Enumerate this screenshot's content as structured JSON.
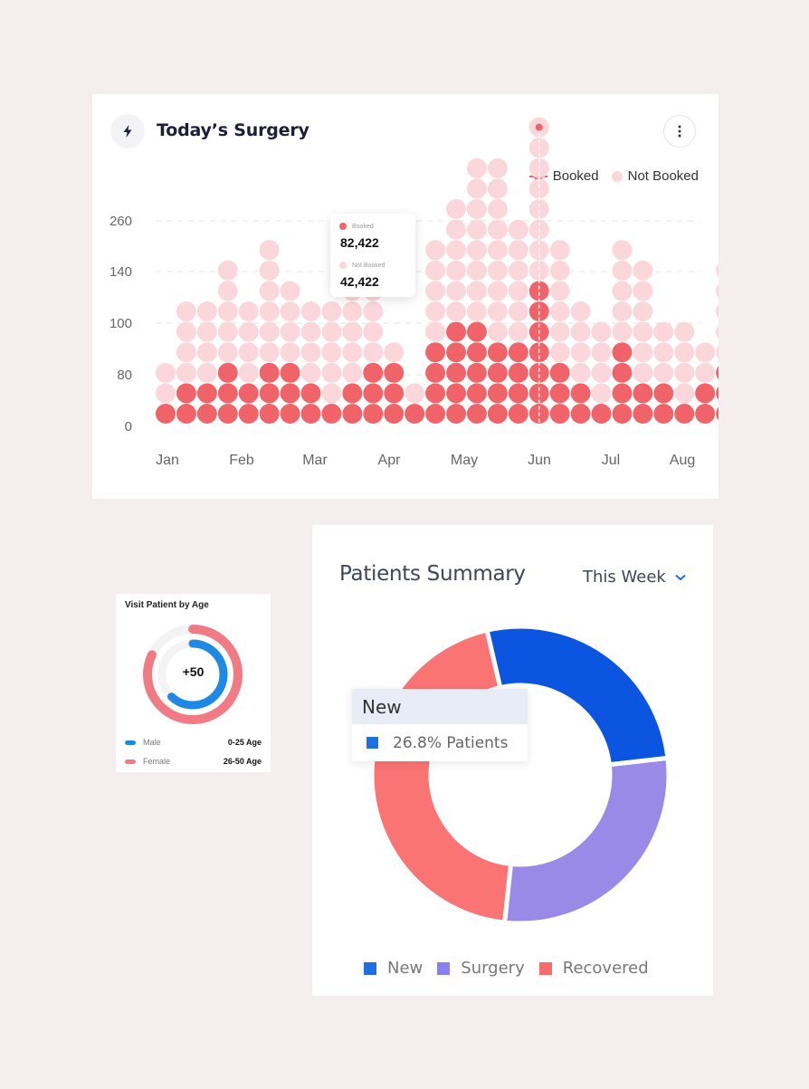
{
  "surgery": {
    "title": "Today’s Surgery",
    "tooltip": {
      "booked_label": "Booked",
      "booked_value": "82,422",
      "not_booked_label": "Not Booked",
      "not_booked_value": "42,422"
    }
  },
  "age_card": {
    "title": "Visit Patient by Age",
    "center_label": "+50",
    "male_fraction": 0.62,
    "female_fraction": 0.82,
    "legend": [
      {
        "label": "Male",
        "value": "0-25 Age",
        "color": "#1e88e5"
      },
      {
        "label": "Female",
        "value": "26-50 Age",
        "color": "#f07b84"
      }
    ]
  },
  "patients": {
    "title": "Patients Summary",
    "period": "This Week",
    "tooltip": {
      "title": "New",
      "value": "26.8% Patients"
    }
  },
  "colors": {
    "booked": "#f06469",
    "not_booked": "#fbd6da",
    "new": "#0b55e0",
    "surgery": "#9a8ae8",
    "recovered": "#fa7474"
  },
  "chart_data": [
    {
      "type": "bar",
      "title": "Today’s Surgery",
      "y_tick_labels": [
        "0",
        "80",
        "100",
        "140",
        "260"
      ],
      "x_tick_labels": [
        "Jan",
        "Feb",
        "Mar",
        "Apr",
        "May",
        "Jun",
        "Jul",
        "Aug"
      ],
      "series": [
        {
          "name": "Booked",
          "values": [
            1,
            2,
            2,
            3,
            2,
            3,
            3,
            2,
            1,
            2,
            3,
            3,
            1,
            4,
            5,
            5,
            4,
            4,
            7,
            3,
            2,
            1,
            4,
            2,
            2,
            1,
            2,
            3
          ]
        },
        {
          "name": "Not Booked",
          "values": [
            2,
            4,
            4,
            5,
            4,
            6,
            4,
            4,
            5,
            5,
            4,
            1,
            1,
            5,
            6,
            8,
            9,
            6,
            8,
            6,
            4,
            4,
            5,
            6,
            3,
            4,
            2,
            5
          ]
        }
      ]
    },
    {
      "type": "pie",
      "title": "Patients Summary",
      "categories": [
        "New",
        "Surgery",
        "Recovered"
      ],
      "values": [
        26.8,
        28.5,
        44.7
      ]
    }
  ]
}
